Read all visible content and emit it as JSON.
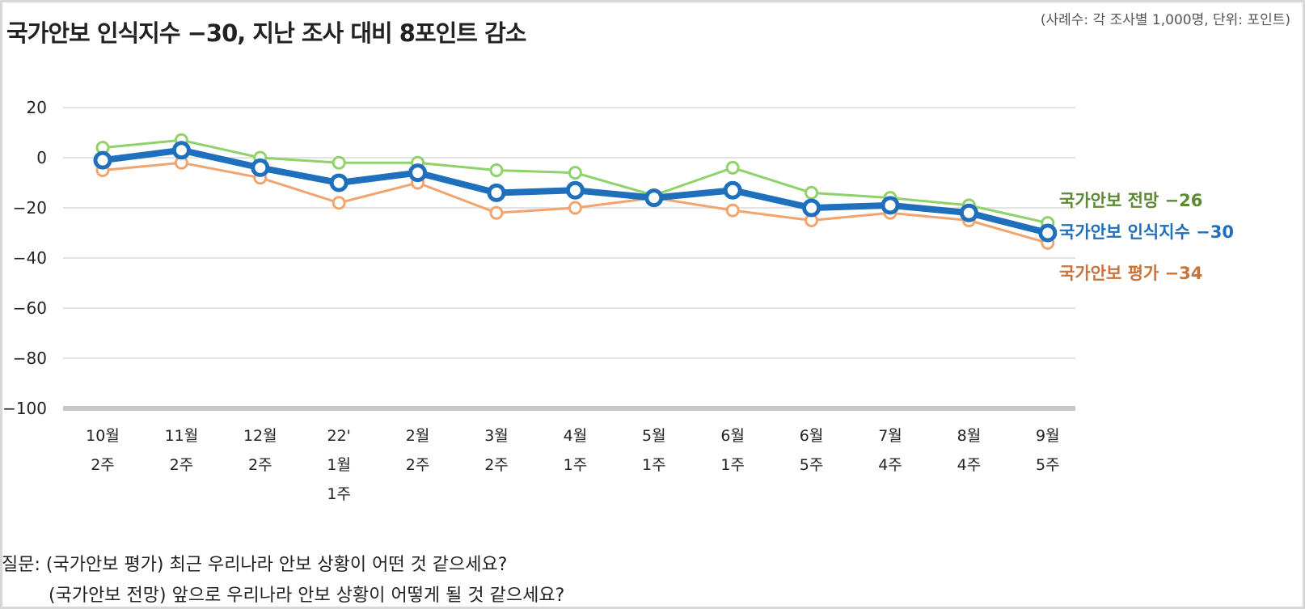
{
  "title": "국가안보 인식지수 −30, 지난 조사 대비 8포인트 감소",
  "note": "(사례수: 각 조사별 1,000명, 단위: 포인트)",
  "questions": {
    "line1": "질문: (국가안보 평가) 최근 우리나라 안보 상황이 어떤 것 같으세요?",
    "line2": "(국가안보 전망) 앞으로 우리나라 안보 상황이 어떻게 될 것 같으세요?"
  },
  "chart_data": {
    "type": "line",
    "categories": [
      [
        "10월",
        "2주"
      ],
      [
        "11월",
        "2주"
      ],
      [
        "12월",
        "2주"
      ],
      [
        "22'",
        "1월",
        "1주"
      ],
      [
        "2월",
        "2주"
      ],
      [
        "3월",
        "2주"
      ],
      [
        "4월",
        "1주"
      ],
      [
        "5월",
        "1주"
      ],
      [
        "6월",
        "1주"
      ],
      [
        "6월",
        "5주"
      ],
      [
        "7월",
        "4주"
      ],
      [
        "8월",
        "4주"
      ],
      [
        "9월",
        "5주"
      ]
    ],
    "ylim": [
      -100,
      20
    ],
    "yticks": [
      "20",
      "0",
      "−20",
      "−40",
      "−60",
      "−80",
      "−100"
    ],
    "ytick_values": [
      20,
      0,
      -20,
      -40,
      -60,
      -80,
      -100
    ],
    "grid": true,
    "series": [
      {
        "name": "국가안보 전망",
        "end_label": "국가안보 전망 −26",
        "color": "#8fd16a",
        "label_color": "#5a8a32",
        "values": [
          4,
          7,
          0,
          -2,
          -2,
          -5,
          -6,
          -15,
          -4,
          -14,
          -16,
          -19,
          -26
        ]
      },
      {
        "name": "국가안보 인식지수",
        "end_label": "국가안보 인식지수 −30",
        "color": "#1f6fbd",
        "label_color": "#1f6fbd",
        "values": [
          -1,
          3,
          -4,
          -10,
          -6,
          -14,
          -13,
          -16,
          -13,
          -20,
          -19,
          -22,
          -30
        ]
      },
      {
        "name": "국가안보 평가",
        "end_label": "국가안보 평가 −34",
        "color": "#f2a46c",
        "label_color": "#c8733a",
        "values": [
          -5,
          -2,
          -8,
          -18,
          -10,
          -22,
          -20,
          -16,
          -21,
          -25,
          -22,
          -25,
          -34
        ]
      }
    ]
  }
}
